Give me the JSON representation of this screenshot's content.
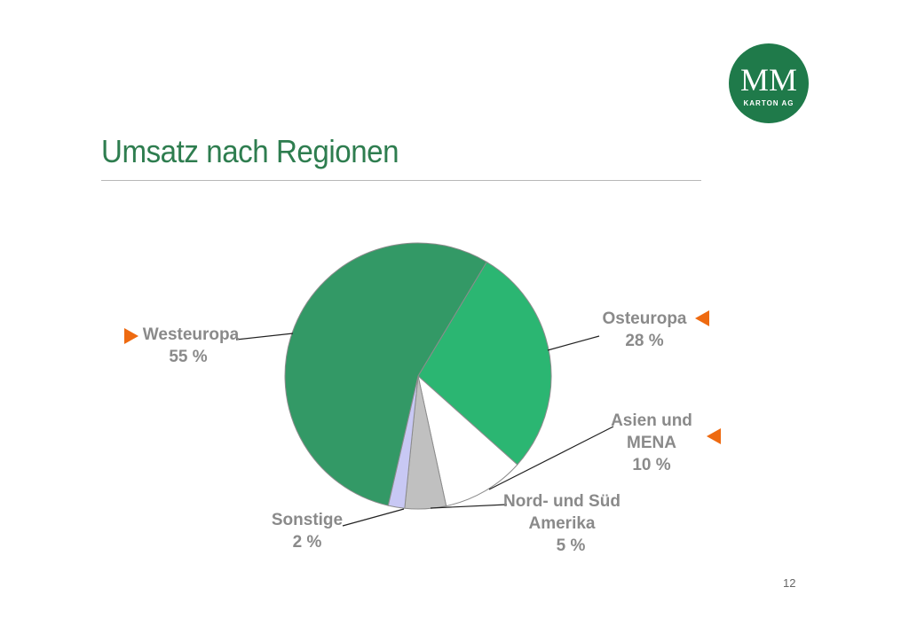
{
  "slide": {
    "title": "Umsatz nach Regionen",
    "page_number": "12",
    "logo": {
      "text": "MM",
      "subtext": "KARTON AG",
      "color": "#1f7a4a"
    },
    "accent_color": "#ee6a10"
  },
  "chart_data": {
    "type": "pie",
    "title": "",
    "start_angle_deg": 31,
    "direction": "clockwise",
    "slices": [
      {
        "name": "Osteuropa",
        "value": 28,
        "label": "28 %",
        "color": "#2bb672"
      },
      {
        "name": "Asien und MENA",
        "value": 10,
        "label": "10 %",
        "color": "#ffffff"
      },
      {
        "name": "Nord- und Süd Amerika",
        "value": 5,
        "label": "5 %",
        "color": "#c0c0c0"
      },
      {
        "name": "Sonstige",
        "value": 2,
        "label": "2 %",
        "color": "#c8c8f4"
      },
      {
        "name": "Westeuropa",
        "value": 55,
        "label": "55 %",
        "color": "#339966"
      }
    ],
    "labels": {
      "westeuropa": {
        "name": "Westeuropa",
        "value": "55 %"
      },
      "osteuropa": {
        "name": "Osteuropa",
        "value": "28 %"
      },
      "asien": {
        "line1": "Asien und",
        "line2": "MENA",
        "value": "10 %"
      },
      "amerika": {
        "line1": "Nord- und Süd",
        "line2": "Amerika",
        "value": "5 %"
      },
      "sonstige": {
        "name": "Sonstige",
        "value": "2 %"
      }
    },
    "highlighted": [
      "Westeuropa",
      "Osteuropa",
      "Asien und MENA"
    ],
    "legend": "none"
  }
}
